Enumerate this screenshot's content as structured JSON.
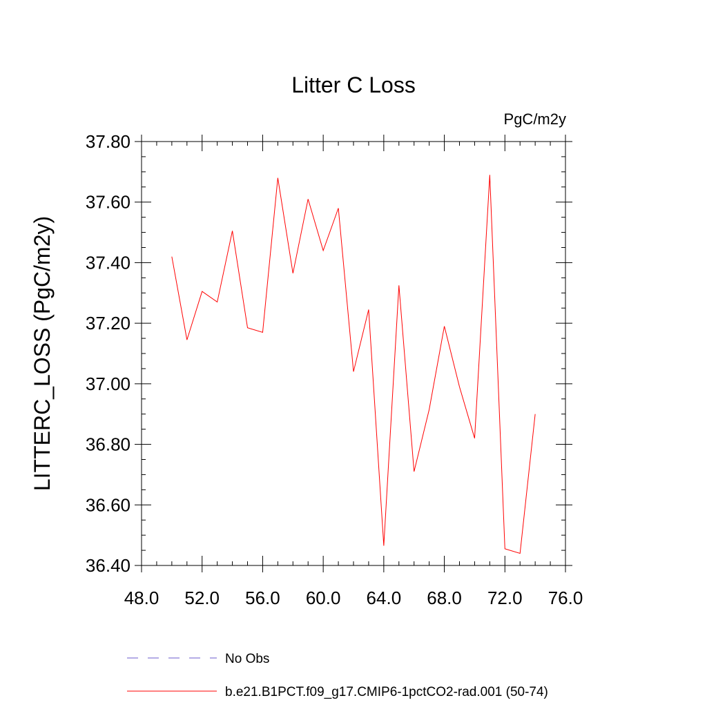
{
  "chart_data": {
    "type": "line",
    "title": "Litter C Loss",
    "units": "PgC/m2y",
    "ylabel": "LITTERC_LOSS  (PgC/m2y)",
    "xlabel": "",
    "xlim": [
      48,
      76
    ],
    "ylim": [
      36.4,
      37.8
    ],
    "xticks": [
      48,
      52,
      56,
      60,
      64,
      68,
      72,
      76
    ],
    "xtick_labels": [
      "48.0",
      "52.0",
      "56.0",
      "60.0",
      "64.0",
      "68.0",
      "72.0",
      "76.0"
    ],
    "yticks": [
      36.4,
      36.6,
      36.8,
      37.0,
      37.2,
      37.4,
      37.6,
      37.8
    ],
    "ytick_labels": [
      "36.40",
      "36.60",
      "36.80",
      "37.00",
      "37.20",
      "37.40",
      "37.60",
      "37.80"
    ],
    "grid": false,
    "legend_position": "bottom",
    "series": [
      {
        "name": "b.e21.B1PCT.f09_g17.CMIP6-1pctCO2-rad.001 (50-74)",
        "color": "#ff0000",
        "style": "solid",
        "x": [
          50,
          51,
          52,
          53,
          54,
          55,
          56,
          57,
          58,
          59,
          60,
          61,
          62,
          63,
          64,
          65,
          66,
          67,
          68,
          69,
          70,
          71,
          72,
          73,
          74
        ],
        "y": [
          37.42,
          37.145,
          37.305,
          37.27,
          37.505,
          37.185,
          37.17,
          37.68,
          37.365,
          37.61,
          37.44,
          37.58,
          37.04,
          37.245,
          36.465,
          37.325,
          36.71,
          36.915,
          37.19,
          36.99,
          36.82,
          37.69,
          36.455,
          36.44,
          36.9
        ]
      }
    ],
    "legend": [
      {
        "label": "No Obs",
        "color": "#6a5acd",
        "style": "dashed"
      },
      {
        "label": "b.e21.B1PCT.f09_g17.CMIP6-1pctCO2-rad.001 (50-74)",
        "color": "#ff0000",
        "style": "solid"
      }
    ]
  }
}
